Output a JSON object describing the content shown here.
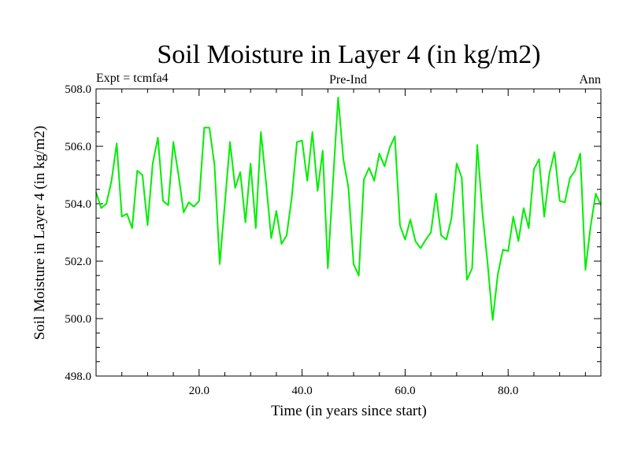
{
  "chart_data": {
    "type": "line",
    "title": "Soil Moisture in Layer 4 (in kg/m2)",
    "subtitle_left": "Expt = tcmfa4",
    "subtitle_center": "Pre-Ind",
    "subtitle_right": "Ann",
    "xlabel": "Time (in years since start)",
    "ylabel": "Soil Moisture in Layer 4 (in kg/m2)",
    "xlim": [
      0,
      98
    ],
    "ylim": [
      498,
      508
    ],
    "x_ticks": [
      20,
      40,
      60,
      80
    ],
    "x_tick_labels": [
      "20.0",
      "40.0",
      "60.0",
      "80.0"
    ],
    "y_ticks": [
      498,
      500,
      502,
      504,
      506,
      508
    ],
    "y_tick_labels": [
      "498.0",
      "500.0",
      "502.0",
      "504.0",
      "506.0",
      "508.0"
    ],
    "line_color": "#00ee00",
    "series": [
      {
        "name": "tcmfa4",
        "x": [
          0,
          1,
          2,
          3,
          4,
          5,
          6,
          7,
          8,
          9,
          10,
          11,
          12,
          13,
          14,
          15,
          16,
          17,
          18,
          19,
          20,
          21,
          22,
          23,
          24,
          25,
          26,
          27,
          28,
          29,
          30,
          31,
          32,
          33,
          34,
          35,
          36,
          37,
          38,
          39,
          40,
          41,
          42,
          43,
          44,
          45,
          46,
          47,
          48,
          49,
          50,
          51,
          52,
          53,
          54,
          55,
          56,
          57,
          58,
          59,
          60,
          61,
          62,
          63,
          64,
          65,
          66,
          67,
          68,
          69,
          70,
          71,
          72,
          73,
          74,
          75,
          76,
          77,
          78,
          79,
          80,
          81,
          82,
          83,
          84,
          85,
          86,
          87,
          88,
          89,
          90,
          91,
          92,
          93,
          94,
          95,
          96,
          97,
          98
        ],
        "values": [
          504.4,
          503.85,
          504.0,
          504.8,
          506.1,
          503.55,
          503.65,
          503.15,
          505.15,
          505.0,
          503.25,
          505.4,
          506.3,
          504.1,
          503.95,
          506.15,
          505.0,
          503.7,
          504.05,
          503.9,
          504.1,
          506.65,
          506.65,
          505.35,
          501.9,
          504.0,
          506.15,
          504.55,
          505.1,
          503.35,
          505.4,
          503.15,
          506.5,
          504.75,
          502.8,
          503.75,
          502.6,
          502.9,
          504.25,
          506.15,
          506.2,
          504.8,
          506.5,
          504.45,
          505.85,
          501.75,
          504.8,
          507.7,
          505.55,
          504.55,
          501.9,
          501.5,
          504.85,
          505.25,
          504.8,
          505.75,
          505.3,
          505.95,
          506.35,
          503.25,
          502.75,
          503.45,
          502.7,
          502.45,
          502.75,
          503.0,
          504.35,
          502.9,
          502.75,
          503.5,
          505.4,
          504.9,
          501.35,
          501.75,
          506.05,
          503.7,
          501.95,
          499.95,
          501.55,
          502.4,
          502.35,
          503.55,
          502.7,
          503.85,
          503.15,
          505.2,
          505.55,
          503.55,
          505.05,
          505.8,
          504.1,
          504.05,
          504.9,
          505.15,
          505.75,
          501.7,
          503.2,
          504.35,
          503.95
        ]
      }
    ]
  }
}
